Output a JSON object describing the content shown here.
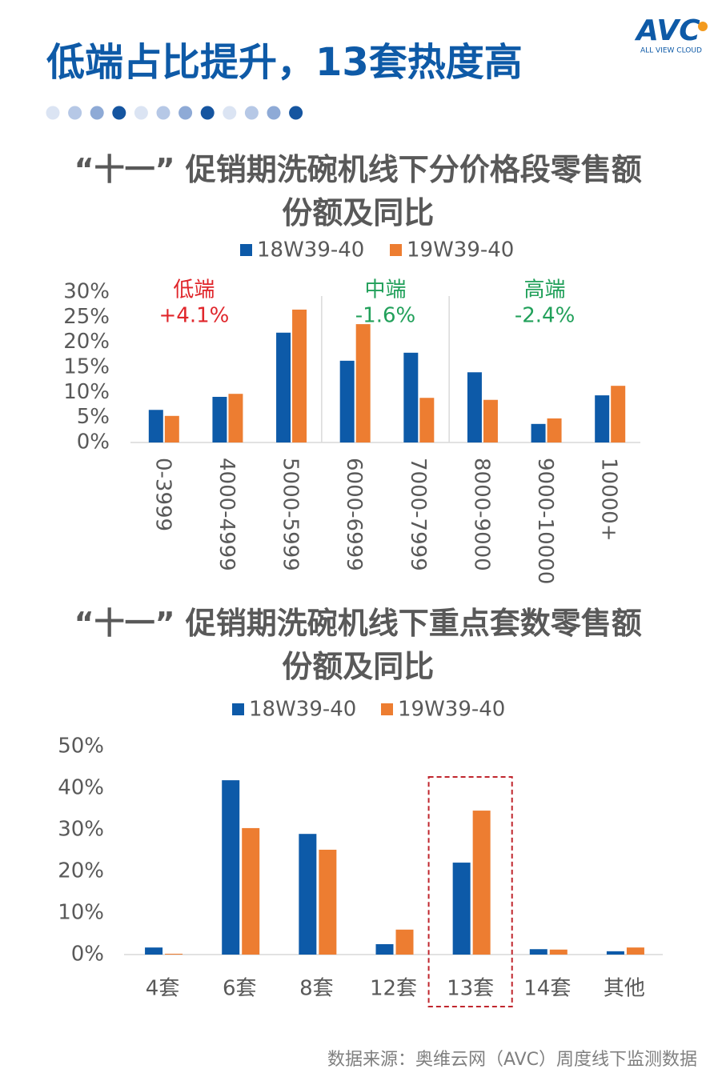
{
  "header": {
    "title": "低端占比提升，13套热度高",
    "logo": "AVC",
    "logo_subtitle": "ALL VIEW CLOUD"
  },
  "chart_data": [
    {
      "type": "bar",
      "title": "“十一” 促销期洗碗机线下分价格段零售额份额及同比",
      "categories": [
        "0-3999",
        "4000-4999",
        "5000-5999",
        "6000-6999",
        "7000-7999",
        "8000-9000",
        "9000-10000",
        "10000+"
      ],
      "series": [
        {
          "name": "18W39-40",
          "color": "#0d5aa8",
          "values": [
            6.5,
            9.1,
            21.9,
            16.3,
            17.9,
            14.0,
            3.7,
            9.4
          ]
        },
        {
          "name": "19W39-40",
          "color": "#ed7d31",
          "values": [
            5.3,
            9.7,
            26.5,
            23.6,
            8.9,
            8.5,
            4.8,
            11.3
          ]
        }
      ],
      "ylim": [
        0,
        30
      ],
      "yticks": [
        {
          "value": 0,
          "label": "0%"
        },
        {
          "value": 5,
          "label": "5%"
        },
        {
          "value": 10,
          "label": "10%"
        },
        {
          "value": 15,
          "label": "15%"
        },
        {
          "value": 20,
          "label": "20%"
        },
        {
          "value": 25,
          "label": "25%"
        },
        {
          "value": 30,
          "label": "30%"
        }
      ],
      "annotations": [
        {
          "label": "低端",
          "change": "+4.1%",
          "color": "#e0262b"
        },
        {
          "label": "中端",
          "change": "-1.6%",
          "color": "#21a05a"
        },
        {
          "label": "高端",
          "change": "-2.4%",
          "color": "#21a05a"
        }
      ]
    },
    {
      "type": "bar",
      "title": "“十一” 促销期洗碗机线下重点套数零售额份额及同比",
      "categories": [
        "4套",
        "6套",
        "8套",
        "12套",
        "13套",
        "14套",
        "其他"
      ],
      "series": [
        {
          "name": "18W39-40",
          "color": "#0d5aa8",
          "values": [
            1.7,
            41.9,
            29.0,
            2.5,
            22.1,
            1.3,
            0.8
          ]
        },
        {
          "name": "19W39-40",
          "color": "#ed7d31",
          "values": [
            0.2,
            30.4,
            25.2,
            6.0,
            34.6,
            1.2,
            1.7
          ]
        }
      ],
      "ylim": [
        0,
        50
      ],
      "yticks": [
        {
          "value": 0,
          "label": "0%"
        },
        {
          "value": 10,
          "label": "10%"
        },
        {
          "value": 20,
          "label": "20%"
        },
        {
          "value": 30,
          "label": "30%"
        },
        {
          "value": 40,
          "label": "40%"
        },
        {
          "value": 50,
          "label": "50%"
        }
      ]
    }
  ],
  "source": "数据来源：奥维云网（AVC）周度线下监测数据"
}
